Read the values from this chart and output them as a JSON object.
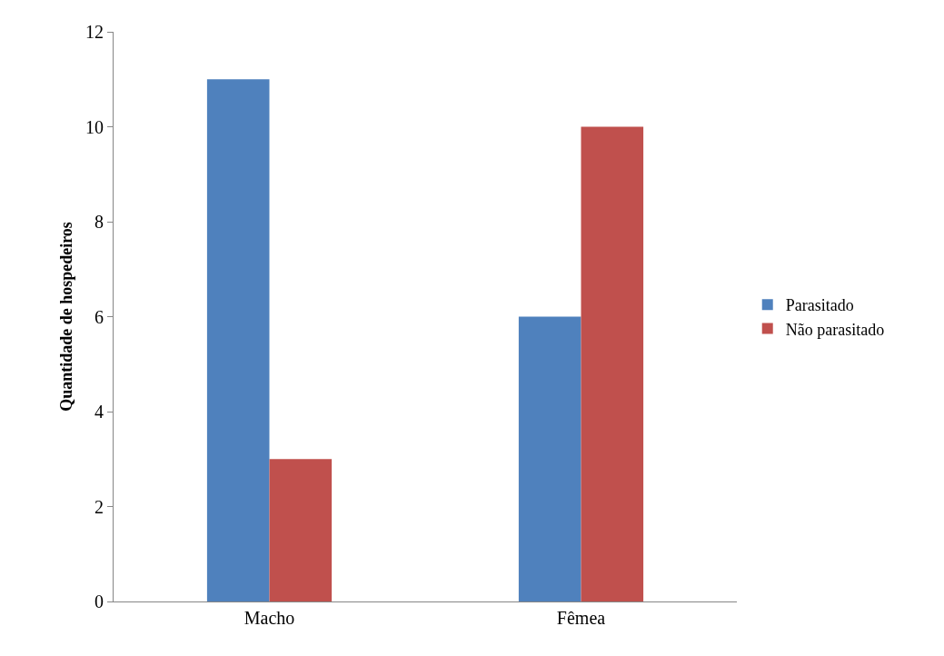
{
  "chart_data": {
    "type": "bar",
    "ylabel": "Quantidade de hospedeiros",
    "categories": [
      "Macho",
      "Fêmea"
    ],
    "series": [
      {
        "name": "Parasitado",
        "color": "#4f81bd",
        "values": [
          11,
          6
        ]
      },
      {
        "name": "Não parasitado",
        "color": "#c0504d",
        "values": [
          3,
          10
        ]
      }
    ],
    "ylim": [
      0,
      12
    ],
    "yticks": [
      0,
      2,
      4,
      6,
      8,
      10,
      12
    ],
    "grid": false,
    "legend": "right"
  }
}
